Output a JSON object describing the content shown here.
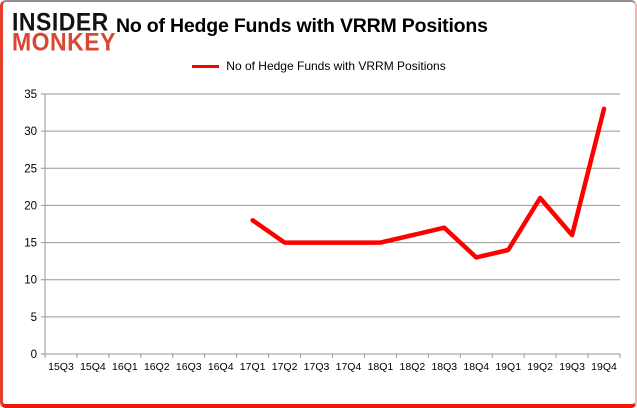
{
  "logo": {
    "line1": "INSIDER",
    "line2": "MONKEY"
  },
  "title": "No of Hedge Funds with VRRM Positions",
  "legend": {
    "label": "No of Hedge Funds with VRRM Positions"
  },
  "chart_data": {
    "type": "line",
    "title": "No of Hedge Funds with VRRM Positions",
    "categories": [
      "15Q3",
      "15Q4",
      "16Q1",
      "16Q2",
      "16Q3",
      "16Q4",
      "17Q1",
      "17Q2",
      "17Q3",
      "17Q4",
      "18Q1",
      "18Q2",
      "18Q3",
      "18Q4",
      "19Q1",
      "19Q2",
      "19Q3",
      "19Q4"
    ],
    "series": [
      {
        "name": "No of Hedge Funds with VRRM Positions",
        "values": [
          null,
          null,
          null,
          null,
          null,
          null,
          18,
          15,
          15,
          15,
          15,
          16,
          17,
          13,
          14,
          21,
          16,
          33
        ]
      }
    ],
    "xlabel": "",
    "ylabel": "",
    "ylim": [
      0,
      35
    ],
    "y_ticks": [
      0,
      5,
      10,
      15,
      20,
      25,
      30,
      35
    ],
    "grid": true,
    "legend_position": "top-center",
    "colors": {
      "line": "#ff0000",
      "grid": "#969696",
      "axis": "#969696",
      "tick_text": "#000000",
      "title_text": "#000000",
      "logo_accent": "#d94631",
      "frame_bottom": "#ea1c0d"
    }
  }
}
